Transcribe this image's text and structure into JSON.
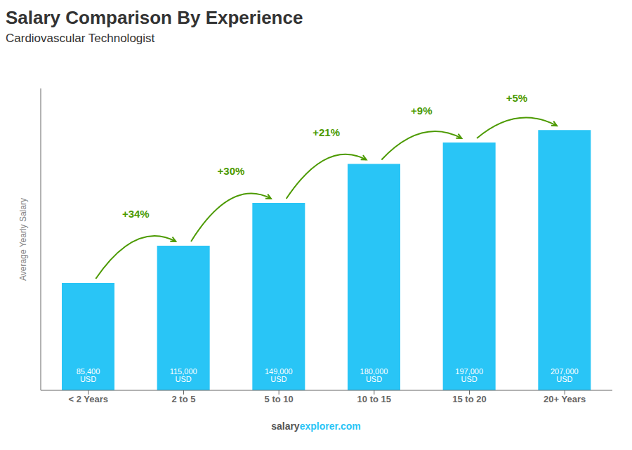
{
  "chart_data": {
    "type": "bar",
    "title": "Salary Comparison By Experience",
    "subtitle": "Cardiovascular Technologist",
    "categories": [
      "< 2 Years",
      "2 to 5",
      "5 to 10",
      "10 to 15",
      "15 to 20",
      "20+ Years"
    ],
    "values": [
      85400,
      115000,
      149000,
      180000,
      197000,
      207000
    ],
    "value_labels": [
      "85,400 USD",
      "115,000 USD",
      "149,000 USD",
      "180,000 USD",
      "197,000 USD",
      "207,000 USD"
    ],
    "data_labels": true,
    "annotations": [
      "+34%",
      "+30%",
      "+21%",
      "+9%",
      "+5%"
    ],
    "color": "#29c5f6",
    "ylim": [
      0,
      240000
    ],
    "ylabel": "Average Yearly Salary",
    "tick_labels": "x",
    "footer": [
      "salary",
      "explorer.com"
    ]
  }
}
